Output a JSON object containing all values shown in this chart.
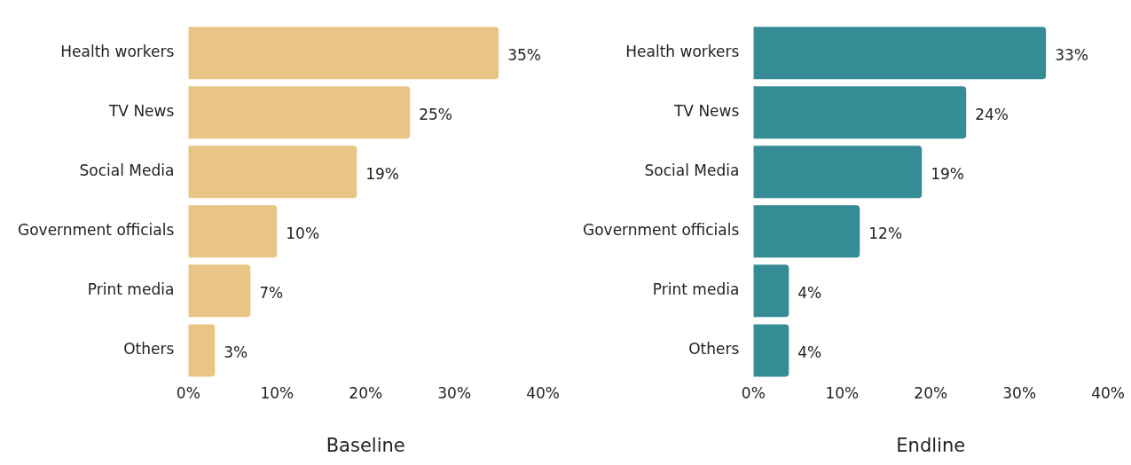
{
  "chart_data": [
    {
      "type": "bar",
      "orientation": "horizontal",
      "xlabel": "Baseline",
      "categories": [
        "Health workers",
        "TV News",
        "Social Media",
        "Government officials",
        "Print media",
        "Others"
      ],
      "values": [
        35,
        25,
        19,
        10,
        7,
        3
      ],
      "color": "#e8c584",
      "value_labels": [
        "35%",
        "25%",
        "19%",
        "10%",
        "7%",
        "3%"
      ],
      "xlim": [
        0,
        40
      ],
      "xticks": [
        {
          "value": 0,
          "label": "0%"
        },
        {
          "value": 10,
          "label": "10%"
        },
        {
          "value": 20,
          "label": "20%"
        },
        {
          "value": 30,
          "label": "30%"
        },
        {
          "value": 40,
          "label": "40%"
        }
      ],
      "grid": false,
      "legend": false
    },
    {
      "type": "bar",
      "orientation": "horizontal",
      "xlabel": "Endline",
      "categories": [
        "Health workers",
        "TV News",
        "Social Media",
        "Government officials",
        "Print media",
        "Others"
      ],
      "values": [
        33,
        24,
        19,
        12,
        4,
        4
      ],
      "color": "#358c94",
      "value_labels": [
        "33%",
        "24%",
        "19%",
        "12%",
        "4%",
        "4%"
      ],
      "xlim": [
        0,
        40
      ],
      "xticks": [
        {
          "value": 0,
          "label": "0%"
        },
        {
          "value": 10,
          "label": "10%"
        },
        {
          "value": 20,
          "label": "20%"
        },
        {
          "value": 30,
          "label": "30%"
        },
        {
          "value": 40,
          "label": "40%"
        }
      ],
      "grid": false,
      "legend": false
    }
  ]
}
